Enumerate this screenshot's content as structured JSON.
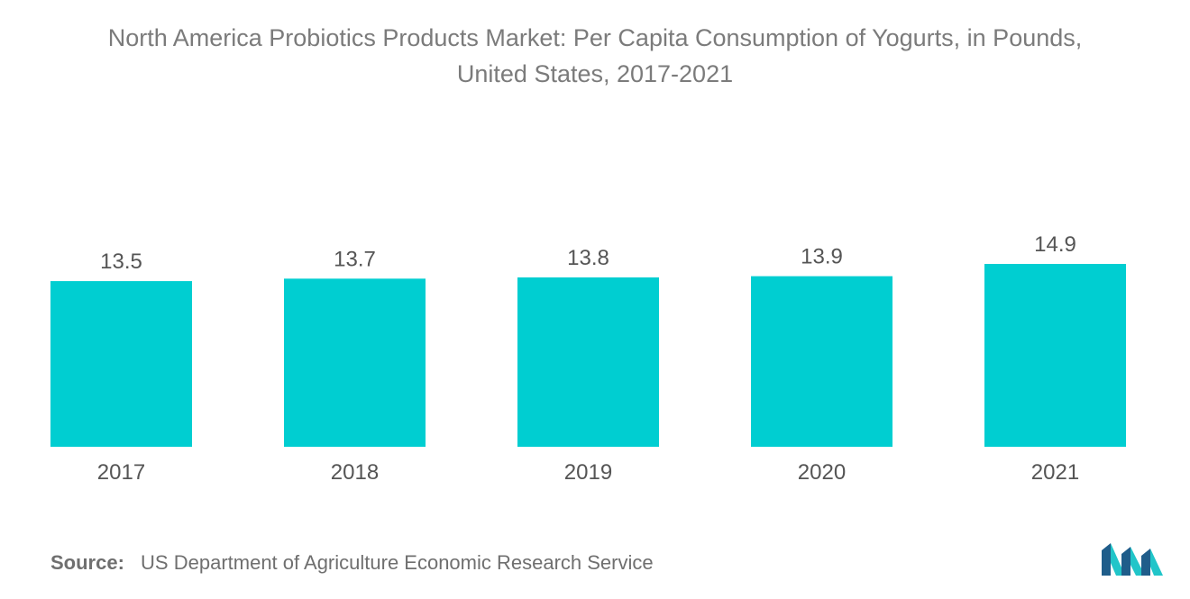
{
  "title_line1": "North America Probiotics Products Market: Per Capita Consumption of Yogurts, in Pounds,",
  "title_line2": "United States, 2017-2021",
  "source_label": "Source:",
  "source_text": "US Department of Agriculture Economic Research Service",
  "logo_icon": "mordor-intelligence-logo-icon",
  "colors": {
    "bar": "#00ced1",
    "text": "#555555",
    "title": "#7b7b7b",
    "logo_dark": "#1f5d8a",
    "logo_light": "#21c5c9"
  },
  "chart_data": {
    "type": "bar",
    "title": "North America Probiotics Products Market: Per Capita Consumption of Yogurts, in Pounds, United States, 2017-2021",
    "categories": [
      "2017",
      "2018",
      "2019",
      "2020",
      "2021"
    ],
    "values": [
      13.5,
      13.7,
      13.8,
      13.9,
      14.9
    ],
    "value_labels": [
      "13.5",
      "13.7",
      "13.8",
      "13.9",
      "14.9"
    ],
    "xlabel": "",
    "ylabel": "",
    "ylim": [
      0,
      14.9
    ],
    "grid": false,
    "legend": "none"
  }
}
